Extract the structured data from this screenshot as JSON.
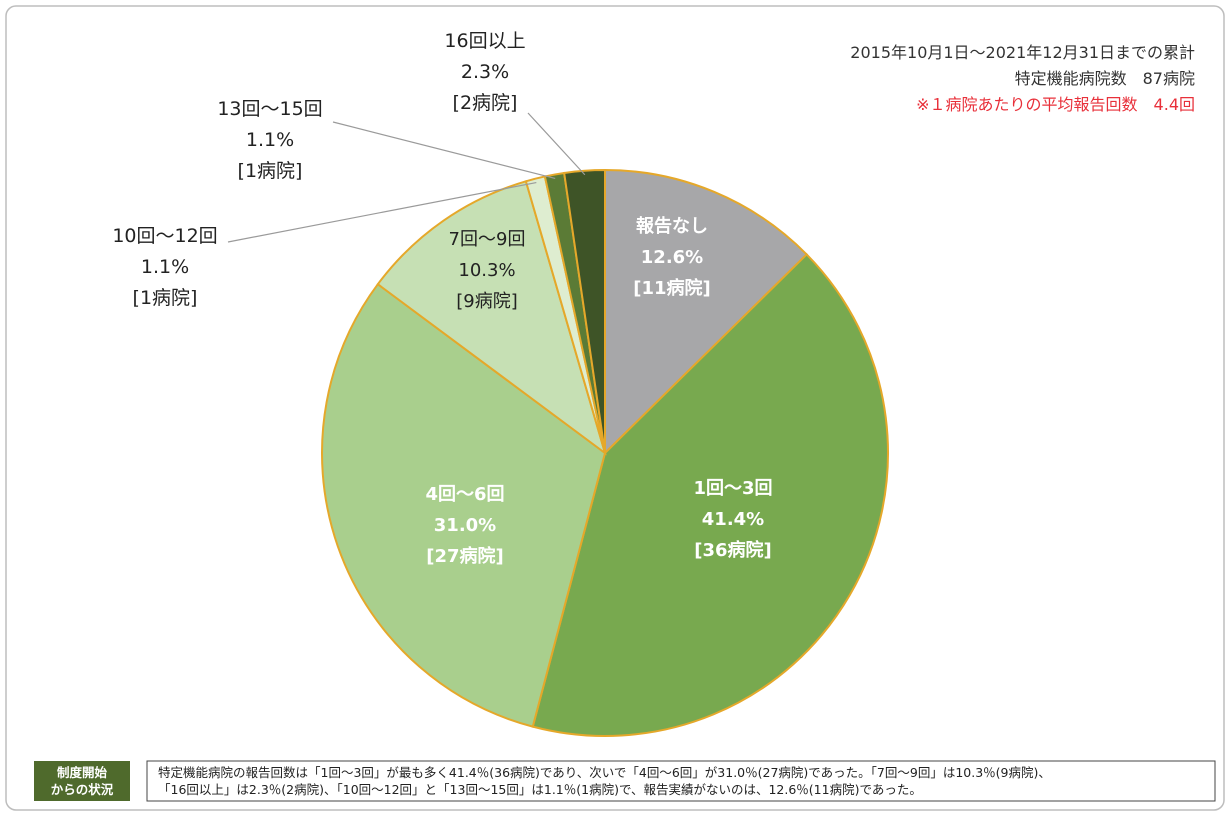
{
  "chart_data": {
    "type": "pie",
    "subtitle": [
      "2015年10月1日～2021年12月31日までの累計",
      "特定機能病院数　87病院"
    ],
    "annotation": "※１病院あたりの平均報告回数　4.4回",
    "categories": [
      "報告なし",
      "1回～3回",
      "4回～6回",
      "7回～9回",
      "10回～12回",
      "13回～15回",
      "16回以上"
    ],
    "values": [
      12.6,
      41.4,
      31.0,
      10.3,
      1.1,
      1.1,
      2.3
    ],
    "value_labels": [
      "12.6%",
      "41.4%",
      "31.0%",
      "10.3%",
      "1.1%",
      "1.1%",
      "2.3%"
    ],
    "hospitals": [
      11,
      36,
      27,
      9,
      1,
      1,
      2
    ],
    "hospital_labels": [
      "[11病院]",
      "[36病院]",
      "[27病院]",
      "[9病院]",
      "[1病院]",
      "[1病院]",
      "[2病院]"
    ],
    "colors": [
      "#a7a7a9",
      "#78a94f",
      "#a9cf8d",
      "#c6e0b4",
      "#deedd0",
      "#5b7b36",
      "#3e5427"
    ],
    "note_badge": [
      "制度開始",
      "からの状況"
    ],
    "note": [
      "特定機能病院の報告回数は「1回～3回」が最も多く41.4％(36病院)であり、次いで「4回～6回」が31.0％(27病院)であった。「7回～9回」は10.3％(9病院)、",
      "「16回以上」は2.3％(2病院)、「10回～12回」と「13回～15回」は1.1％(1病院)で、報告実績がないのは、12.6％(11病院)であった。"
    ]
  }
}
